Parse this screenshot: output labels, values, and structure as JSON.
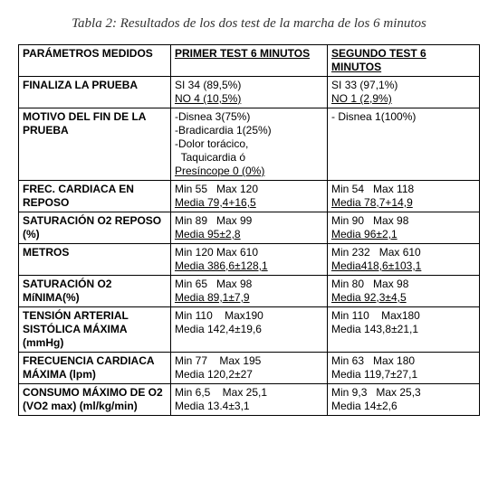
{
  "title": "Tabla 2: Resultados de los dos test de la marcha de los 6 minutos",
  "headers": {
    "param": "PARÁMETROS MEDIDOS",
    "test1": "PRIMER TEST 6 MINUTOS",
    "test2": "SEGUNDO TEST 6 MINUTOS"
  },
  "rows": {
    "r1": {
      "param": "FINALIZA LA PRUEBA",
      "t1_l1": "SI  34 (89,5%)",
      "t1_l2": "NO  4 (10,5%)",
      "t2_l1": "SI  33 (97,1%)",
      "t2_l2": "NO  1 (2,9%)"
    },
    "r2": {
      "param": "MOTIVO DEL FIN DE LA PRUEBA",
      "t1_l1": "-Disnea 3(75%)",
      "t1_l2": "-Bradicardia 1(25%)",
      "t1_l3": "-Dolor torácico,",
      "t1_l4": "  Taquicardia ó",
      "t1_l5": "Presíncope 0 (0%)",
      "t2_l1": "- Disnea 1(100%)"
    },
    "r3": {
      "param": "FREC. CARDIACA EN REPOSO",
      "t1_l1": "Min 55   Max 120",
      "t1_l2": "Media 79,4+16,5",
      "t2_l1": "Min 54   Max 118",
      "t2_l2": "Media 78,7+14,9"
    },
    "r4": {
      "param": "SATURACIÓN O2 REPOSO (%)",
      "t1_l1": "Min 89   Max 99",
      "t1_l2": "Media 95±2,8",
      "t2_l1": "Min 90   Max 98",
      "t2_l2": "Media 96±2,1"
    },
    "r5": {
      "param": "METROS",
      "t1_l1": "Min 120 Max 610",
      "t1_l2": "Media 386,6±128,1",
      "t2_l1": "Min 232   Max 610",
      "t2_l2": "Media418,6±103,1"
    },
    "r6": {
      "param": "SATURACIÓN O2 MíNIMA(%)",
      "t1_l1": "Min 65   Max 98",
      "t1_l2": "Media 89,1±7,9",
      "t2_l1": "Min 80   Max 98",
      "t2_l2": "Media 92,3±4,5"
    },
    "r7": {
      "param": "TENSIÓN ARTERIAL SISTÓLICA MÁXIMA (mmHg)",
      "t1_l1": "Min 110    Max190",
      "t1_l2": "Media 142,4±19,6",
      "t2_l1": "Min 110    Max180",
      "t2_l2": "Media 143,8±21,1"
    },
    "r8": {
      "param": "FRECUENCIA CARDIACA MÁXIMA (lpm)",
      "t1_l1": "Min 77    Max 195",
      "t1_l2": "Media 120,2±27",
      "t2_l1": "Min 63   Max 180",
      "t2_l2": "Media 119,7±27,1"
    },
    "r9": {
      "param": "CONSUMO MÁXIMO DE O2 (VO2 max) (ml/kg/min)",
      "t1_l1": "Min 6,5    Max 25,1",
      "t1_l2": "Media 13.4±3,1",
      "t2_l1": "Min 9,3   Max 25,3",
      "t2_l2": "Media 14±2,6"
    }
  }
}
